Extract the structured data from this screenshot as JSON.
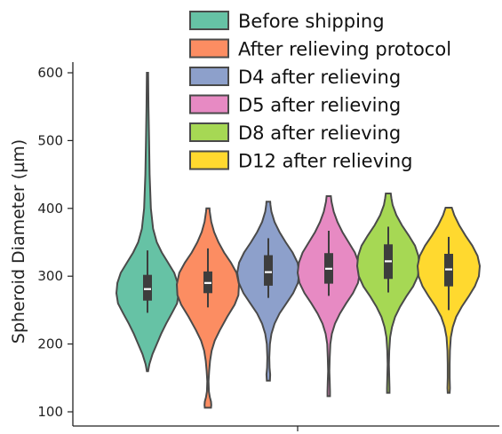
{
  "chart_data": {
    "type": "violin",
    "title": "",
    "xlabel": "",
    "ylabel": "Spheroid Diameter (µm)",
    "ylim": [
      90,
      615
    ],
    "yticks": [
      100,
      200,
      300,
      400,
      500,
      600
    ],
    "legend": "top",
    "grid": false,
    "series": [
      {
        "name": "Before shipping",
        "color": "#66c2a5",
        "min": 160,
        "max": 600,
        "q1": 264,
        "median": 281,
        "q3": 302,
        "whisker_low": 246,
        "whisker_high": 338,
        "density": [
          [
            160,
            0.02
          ],
          [
            170,
            0.06
          ],
          [
            185,
            0.16
          ],
          [
            200,
            0.3
          ],
          [
            215,
            0.44
          ],
          [
            230,
            0.6
          ],
          [
            245,
            0.78
          ],
          [
            260,
            0.95
          ],
          [
            275,
            1.0
          ],
          [
            290,
            0.97
          ],
          [
            305,
            0.86
          ],
          [
            320,
            0.66
          ],
          [
            335,
            0.46
          ],
          [
            350,
            0.3
          ],
          [
            370,
            0.18
          ],
          [
            400,
            0.11
          ],
          [
            450,
            0.07
          ],
          [
            500,
            0.05
          ],
          [
            550,
            0.03
          ],
          [
            600,
            0.02
          ]
        ]
      },
      {
        "name": "After relieving protocol",
        "color": "#fc8d62",
        "min": 106,
        "max": 400,
        "q1": 275,
        "median": 290,
        "q3": 307,
        "whisker_low": 254,
        "whisker_high": 341,
        "density": [
          [
            106,
            0.1
          ],
          [
            110,
            0.11
          ],
          [
            115,
            0.1
          ],
          [
            122,
            0.06
          ],
          [
            130,
            0.03
          ],
          [
            145,
            0.02
          ],
          [
            160,
            0.04
          ],
          [
            175,
            0.07
          ],
          [
            190,
            0.12
          ],
          [
            205,
            0.22
          ],
          [
            220,
            0.38
          ],
          [
            240,
            0.62
          ],
          [
            258,
            0.86
          ],
          [
            272,
            0.98
          ],
          [
            288,
            1.0
          ],
          [
            305,
            0.92
          ],
          [
            320,
            0.74
          ],
          [
            335,
            0.52
          ],
          [
            350,
            0.34
          ],
          [
            365,
            0.2
          ],
          [
            380,
            0.11
          ],
          [
            395,
            0.06
          ],
          [
            400,
            0.05
          ]
        ]
      },
      {
        "name": "D4 after relieving",
        "color": "#8da0cb",
        "min": 146,
        "max": 410,
        "q1": 286,
        "median": 306,
        "q3": 331,
        "whisker_low": 268,
        "whisker_high": 356,
        "density": [
          [
            146,
            0.05
          ],
          [
            155,
            0.06
          ],
          [
            165,
            0.04
          ],
          [
            180,
            0.03
          ],
          [
            200,
            0.05
          ],
          [
            215,
            0.1
          ],
          [
            230,
            0.2
          ],
          [
            245,
            0.36
          ],
          [
            260,
            0.58
          ],
          [
            275,
            0.8
          ],
          [
            290,
            0.95
          ],
          [
            305,
            1.0
          ],
          [
            320,
            0.94
          ],
          [
            335,
            0.78
          ],
          [
            350,
            0.56
          ],
          [
            365,
            0.36
          ],
          [
            380,
            0.2
          ],
          [
            395,
            0.1
          ],
          [
            405,
            0.07
          ],
          [
            410,
            0.06
          ]
        ]
      },
      {
        "name": "D5 after relieving",
        "color": "#e78ac3",
        "min": 123,
        "max": 418,
        "q1": 289,
        "median": 311,
        "q3": 334,
        "whisker_low": 271,
        "whisker_high": 367,
        "density": [
          [
            123,
            0.04
          ],
          [
            130,
            0.04
          ],
          [
            145,
            0.03
          ],
          [
            160,
            0.02
          ],
          [
            180,
            0.03
          ],
          [
            200,
            0.05
          ],
          [
            215,
            0.1
          ],
          [
            230,
            0.2
          ],
          [
            245,
            0.36
          ],
          [
            260,
            0.56
          ],
          [
            275,
            0.78
          ],
          [
            290,
            0.94
          ],
          [
            305,
            1.0
          ],
          [
            320,
            0.96
          ],
          [
            335,
            0.84
          ],
          [
            350,
            0.64
          ],
          [
            365,
            0.44
          ],
          [
            380,
            0.28
          ],
          [
            395,
            0.16
          ],
          [
            410,
            0.09
          ],
          [
            418,
            0.07
          ]
        ]
      },
      {
        "name": "D8 after relieving",
        "color": "#a6d854",
        "min": 128,
        "max": 422,
        "q1": 296,
        "median": 322,
        "q3": 347,
        "whisker_low": 276,
        "whisker_high": 373,
        "density": [
          [
            128,
            0.04
          ],
          [
            135,
            0.04
          ],
          [
            150,
            0.03
          ],
          [
            170,
            0.02
          ],
          [
            190,
            0.03
          ],
          [
            210,
            0.06
          ],
          [
            225,
            0.12
          ],
          [
            240,
            0.22
          ],
          [
            255,
            0.38
          ],
          [
            270,
            0.58
          ],
          [
            285,
            0.8
          ],
          [
            300,
            0.95
          ],
          [
            315,
            1.0
          ],
          [
            330,
            0.97
          ],
          [
            345,
            0.86
          ],
          [
            360,
            0.66
          ],
          [
            375,
            0.44
          ],
          [
            390,
            0.26
          ],
          [
            405,
            0.14
          ],
          [
            415,
            0.1
          ],
          [
            422,
            0.08
          ]
        ]
      },
      {
        "name": "D12 after relieving",
        "color": "#ffd92f",
        "min": 128,
        "max": 401,
        "q1": 285,
        "median": 310,
        "q3": 333,
        "whisker_low": 250,
        "whisker_high": 358,
        "density": [
          [
            128,
            0.03
          ],
          [
            135,
            0.04
          ],
          [
            150,
            0.03
          ],
          [
            170,
            0.03
          ],
          [
            190,
            0.04
          ],
          [
            210,
            0.07
          ],
          [
            225,
            0.13
          ],
          [
            240,
            0.24
          ],
          [
            255,
            0.42
          ],
          [
            270,
            0.64
          ],
          [
            285,
            0.84
          ],
          [
            300,
            0.97
          ],
          [
            315,
            1.0
          ],
          [
            330,
            0.93
          ],
          [
            345,
            0.76
          ],
          [
            360,
            0.54
          ],
          [
            375,
            0.34
          ],
          [
            390,
            0.18
          ],
          [
            401,
            0.1
          ]
        ]
      }
    ]
  }
}
